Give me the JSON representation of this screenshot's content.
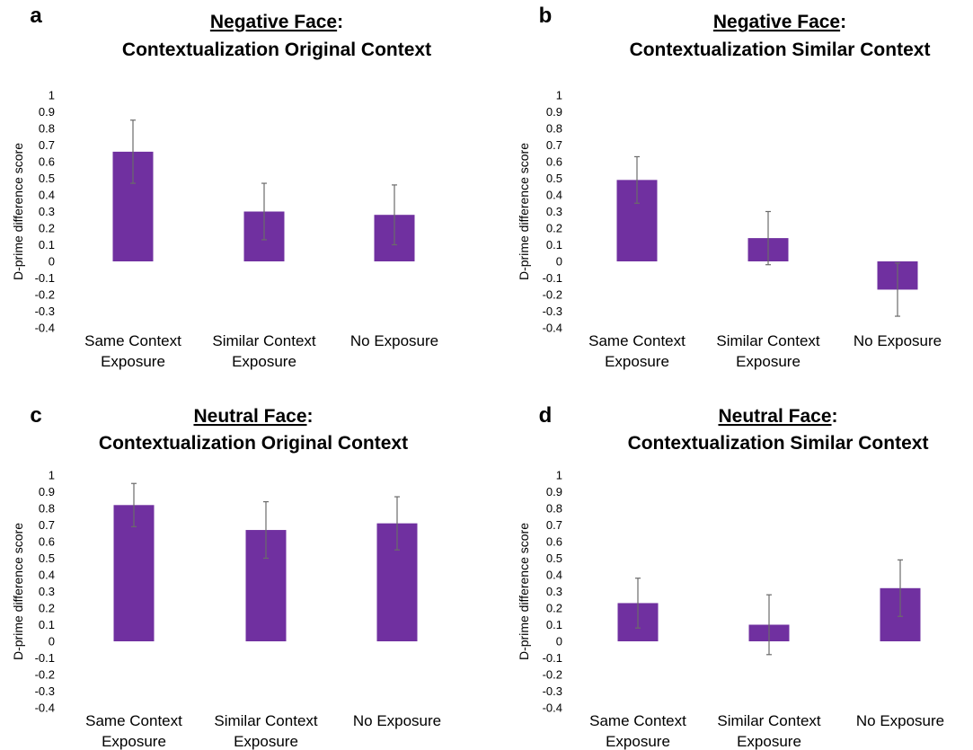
{
  "chart_data": [
    {
      "type": "bar",
      "panel_label": "a",
      "title_emphasis": "Negative Face",
      "title_suffix": ":",
      "title_line2": "Contextualization Original Context",
      "ylabel": "D-prime difference score",
      "ylim": [
        -0.4,
        1
      ],
      "yticks": [
        "1",
        "0.9",
        "0.8",
        "0.7",
        "0.6",
        "0.5",
        "0.4",
        "0.3",
        "0.2",
        "0.1",
        "0",
        "-0.1",
        "-0.2",
        "-0.3",
        "-0.4"
      ],
      "categories": [
        [
          "Same Context",
          "Exposure"
        ],
        [
          "Similar Context",
          "Exposure"
        ],
        [
          "No Exposure"
        ]
      ],
      "values": [
        0.66,
        0.3,
        0.28
      ],
      "errors": [
        0.19,
        0.17,
        0.18
      ],
      "color": "#7030a0",
      "grid": false
    },
    {
      "type": "bar",
      "panel_label": "b",
      "title_emphasis": "Negative Face",
      "title_suffix": ":",
      "title_line2": "Contextualization Similar Context",
      "ylabel": "D-prime difference score",
      "ylim": [
        -0.4,
        1
      ],
      "yticks": [
        "1",
        "0.9",
        "0.8",
        "0.7",
        "0.6",
        "0.5",
        "0.4",
        "0.3",
        "0.2",
        "0.1",
        "0",
        "-0.1",
        "-0.2",
        "-0.3",
        "-0.4"
      ],
      "categories": [
        [
          "Same Context",
          "Exposure"
        ],
        [
          "Similar Context",
          "Exposure"
        ],
        [
          "No Exposure"
        ]
      ],
      "values": [
        0.49,
        0.14,
        -0.17
      ],
      "errors": [
        0.14,
        0.16,
        0.16
      ],
      "color": "#7030a0",
      "grid": false
    },
    {
      "type": "bar",
      "panel_label": "c",
      "title_emphasis": "Neutral Face",
      "title_suffix": ":",
      "title_line2": "Contextualization Original Context",
      "ylabel": "D-prime difference score",
      "ylim": [
        -0.4,
        1
      ],
      "yticks": [
        "1",
        "0.9",
        "0.8",
        "0.7",
        "0.6",
        "0.5",
        "0.4",
        "0.3",
        "0.2",
        "0.1",
        "0",
        "-0.1",
        "-0.2",
        "-0.3",
        "-0.4"
      ],
      "categories": [
        [
          "Same Context",
          "Exposure"
        ],
        [
          "Similar Context",
          "Exposure"
        ],
        [
          "No Exposure"
        ]
      ],
      "values": [
        0.82,
        0.67,
        0.71
      ],
      "errors": [
        0.13,
        0.17,
        0.16
      ],
      "color": "#7030a0",
      "grid": false
    },
    {
      "type": "bar",
      "panel_label": "d",
      "title_emphasis": "Neutral Face",
      "title_suffix": ":",
      "title_line2": "Contextualization Similar Context",
      "ylabel": "D-prime difference score",
      "ylim": [
        -0.4,
        1
      ],
      "yticks": [
        "1",
        "0.9",
        "0.8",
        "0.7",
        "0.6",
        "0.5",
        "0.4",
        "0.3",
        "0.2",
        "0.1",
        "0",
        "-0.1",
        "-0.2",
        "-0.3",
        "-0.4"
      ],
      "categories": [
        [
          "Same Context",
          "Exposure"
        ],
        [
          "Similar Context",
          "Exposure"
        ],
        [
          "No Exposure"
        ]
      ],
      "values": [
        0.23,
        0.1,
        0.32
      ],
      "errors": [
        0.15,
        0.18,
        0.17
      ],
      "color": "#7030a0",
      "grid": false
    }
  ]
}
